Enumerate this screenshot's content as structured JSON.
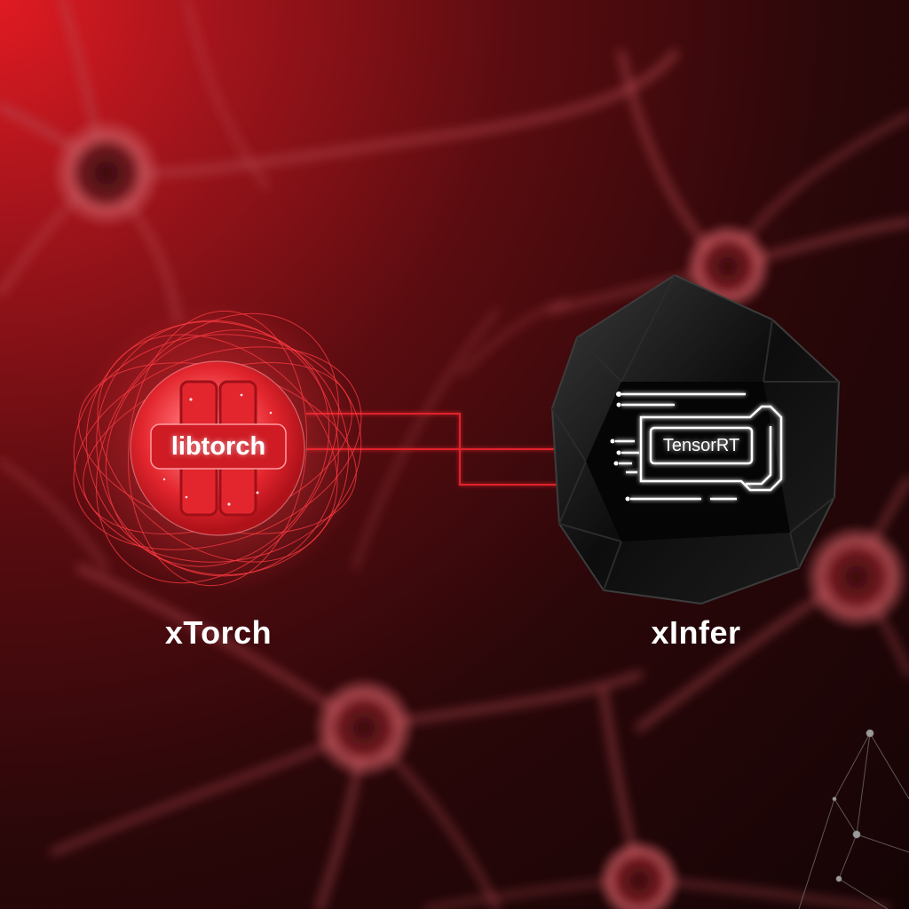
{
  "left_node": {
    "caption": "xTorch",
    "core_label": "libtorch",
    "icon": "red-glowing-orb-icon"
  },
  "right_node": {
    "caption": "xInfer",
    "core_label": "TensorRT",
    "icon": "black-polyhedron-chip-icon"
  },
  "colors": {
    "accent_red": "#e8242c",
    "background_dark": "#150405",
    "text": "#ffffff"
  }
}
